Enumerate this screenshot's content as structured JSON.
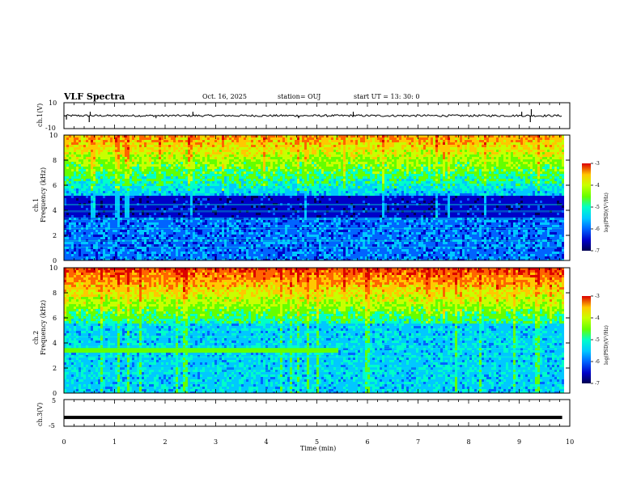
{
  "header": {
    "title": "VLF Spectra",
    "date": "Oct. 16, 2025",
    "station": "station= OUJ",
    "start": "start  UT =   13: 30: 0"
  },
  "colors": {
    "cmap": [
      "#000050",
      "#0000c8",
      "#0064ff",
      "#00c8ff",
      "#00ffc8",
      "#64ff00",
      "#c8ff00",
      "#ffc800",
      "#ff6400",
      "#dc0000"
    ],
    "axis": "#000000",
    "background": "#ffffff"
  },
  "chart_data": [
    {
      "type": "line",
      "ylabel": "ch.1(V)",
      "ylim": [
        -10,
        10
      ],
      "ytick_labels": [
        "10",
        "-10"
      ],
      "xlim": [
        0,
        10
      ],
      "baseline_value": 0,
      "spikes": [
        {
          "x": 0.05,
          "y": -3
        },
        {
          "x": 0.5,
          "y": -5
        },
        {
          "x": 0.52,
          "y": 3
        },
        {
          "x": 1.82,
          "y": -2
        },
        {
          "x": 2.55,
          "y": 3
        },
        {
          "x": 4.64,
          "y": -2
        },
        {
          "x": 5.72,
          "y": 3
        },
        {
          "x": 9.05,
          "y": 3
        },
        {
          "x": 9.22,
          "y": -5
        },
        {
          "x": 9.24,
          "y": 5
        }
      ]
    },
    {
      "type": "heatmap",
      "ylabel": "ch.1",
      "ylabel2": "Frequency (kHz)",
      "xlim": [
        0,
        9.85
      ],
      "ylim": [
        0,
        10
      ],
      "ytick_labels": [
        "0",
        "2",
        "4",
        "6",
        "8",
        "10"
      ],
      "dark_band_top_khz": 5.2,
      "dark_band_bottom_khz": 3.5,
      "colorbar": {
        "ticks": [
          "-3",
          "-4",
          "-5",
          "-6",
          "-7"
        ],
        "label": "log(PSD)(V²/Hz)",
        "range": [
          -7,
          -3
        ]
      }
    },
    {
      "type": "heatmap",
      "ylabel": "ch.2",
      "ylabel2": "Frequency (kHz)",
      "xlim": [
        0,
        9.85
      ],
      "ylim": [
        0,
        10
      ],
      "ytick_labels": [
        "0",
        "2",
        "4",
        "6",
        "8",
        "10"
      ],
      "line_khz": 3.4,
      "line_end_min": 5.4,
      "colorbar": {
        "ticks": [
          "-3",
          "-4",
          "-5",
          "-6",
          "-7"
        ],
        "label": "log(PSD)(V²/Hz)",
        "range": [
          -7,
          -3
        ]
      }
    },
    {
      "type": "line",
      "ylabel": "ch.3(V)",
      "ylim": [
        -5,
        5
      ],
      "ytick_labels": [
        "5",
        "-5"
      ],
      "xlim": [
        0,
        10
      ],
      "constant_value": -1.7
    }
  ],
  "xaxis": {
    "label": "Time (min)",
    "tick_labels": [
      "0",
      "1",
      "2",
      "3",
      "4",
      "5",
      "6",
      "7",
      "8",
      "9",
      "10"
    ]
  }
}
